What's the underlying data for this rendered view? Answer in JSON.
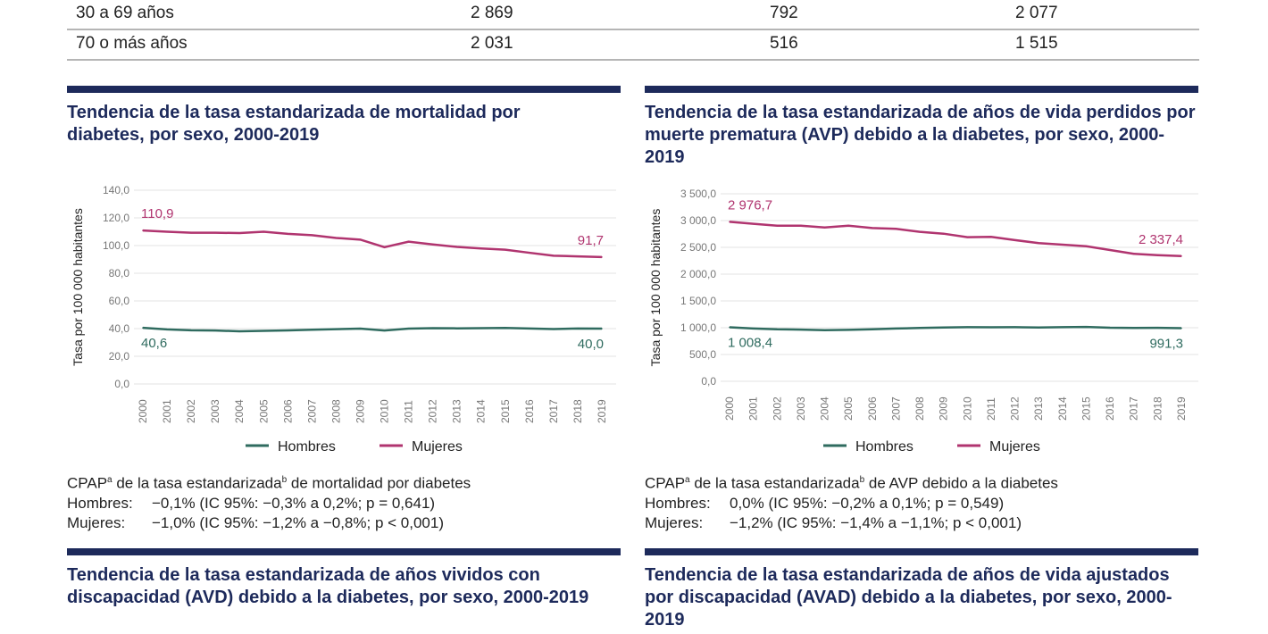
{
  "table": {
    "rows": [
      [
        "30 a 69 años",
        "2 869",
        "792",
        "2 077"
      ],
      [
        "70 o más años",
        "2 031",
        "516",
        "1 515"
      ]
    ]
  },
  "colors": {
    "navy": "#1d2a5b",
    "hombres": "#2f6b5f",
    "mujeres": "#b0346f"
  },
  "titles": {
    "mort": "Tendencia de la tasa estandarizada de mortalidad por diabetes, por sexo, 2000-2019",
    "avp": "Tendencia de la tasa estandarizada de años de vida perdidos por muerte prematura (AVP) debido a la diabetes, por sexo, 2000-2019",
    "avd": "Tendencia de la tasa estandarizada de años vividos con discapacidad (AVD) debido a la diabetes, por sexo, 2000-2019",
    "avad": "Tendencia de la tasa estandarizada de años de vida ajustados por discapacidad (AVAD) debido a la diabetes, por sexo, 2000-2019"
  },
  "notes": {
    "mort": {
      "head": "CPAP",
      "sup_a": "a",
      "mid": " de la tasa estandarizada",
      "sup_b": "b",
      "tail": " de mortalidad por diabetes",
      "h_label": "Hombres:",
      "h_text": "−0,1% (IC 95%: −0,3% a 0,2%; p = 0,641)",
      "m_label": "Mujeres:",
      "m_text": "−1,0% (IC 95%: −1,2% a −0,8%; p < 0,001)"
    },
    "avp": {
      "head": "CPAP",
      "sup_a": "a",
      "mid": " de la tasa estandarizada",
      "sup_b": "b",
      "tail": " de AVP debido a la diabetes",
      "h_label": "Hombres:",
      "h_text": "0,0% (IC 95%: −0,2% a 0,1%; p = 0,549)",
      "m_label": "Mujeres:",
      "m_text": "−1,2% (IC 95%: −1,4% a −1,1%; p < 0,001)"
    }
  },
  "chart_data": [
    {
      "type": "line",
      "ylabel": "Tasa por 100 000 habitantes",
      "ylim": [
        0,
        140
      ],
      "yticks": [
        "0,0",
        "20,0",
        "40,0",
        "60,0",
        "80,0",
        "100,0",
        "120,0",
        "140,0"
      ],
      "ystep": 20,
      "x": [
        "2000",
        "2001",
        "2002",
        "2003",
        "2004",
        "2005",
        "2006",
        "2007",
        "2008",
        "2009",
        "2010",
        "2011",
        "2012",
        "2013",
        "2014",
        "2015",
        "2016",
        "2017",
        "2018",
        "2019"
      ],
      "grid": true,
      "legend": "bottom",
      "series": [
        {
          "name": "Hombres",
          "values": [
            40.6,
            39.4,
            38.8,
            38.6,
            38.1,
            38.4,
            38.7,
            39.2,
            39.6,
            40.0,
            38.6,
            40.0,
            40.3,
            40.2,
            40.3,
            40.5,
            40.1,
            39.7,
            40.1,
            40.0
          ],
          "start_label": "40,6",
          "end_label": "40,0"
        },
        {
          "name": "Mujeres",
          "values": [
            110.9,
            110.0,
            109.3,
            109.3,
            109.0,
            110.0,
            108.5,
            107.5,
            105.5,
            104.3,
            98.8,
            102.8,
            100.8,
            99.0,
            97.9,
            97.0,
            94.8,
            92.7,
            92.2,
            91.7
          ],
          "start_label": "110,9",
          "end_label": "91,7"
        }
      ]
    },
    {
      "type": "line",
      "ylabel": "Tasa por 100 000 habitantes",
      "ylim": [
        0,
        3500
      ],
      "yticks": [
        "0,0",
        "500,0",
        "1 000,0",
        "1 500,0",
        "2 000,0",
        "2 500,0",
        "3 000,0",
        "3 500,0"
      ],
      "ystep": 500,
      "x": [
        "2000",
        "2001",
        "2002",
        "2003",
        "2004",
        "2005",
        "2006",
        "2007",
        "2008",
        "2009",
        "2010",
        "2011",
        "2012",
        "2013",
        "2014",
        "2015",
        "2016",
        "2017",
        "2018",
        "2019"
      ],
      "grid": true,
      "legend": "bottom",
      "series": [
        {
          "name": "Hombres",
          "values": [
            1008.4,
            985,
            970,
            965,
            955,
            960,
            970,
            985,
            995,
            1005,
            1010,
            1008,
            1010,
            1005,
            1010,
            1015,
            1000,
            995,
            998,
            991.3
          ],
          "start_label": "1 008,4",
          "end_label": "991,3"
        },
        {
          "name": "Mujeres",
          "values": [
            2976.7,
            2940,
            2905,
            2905,
            2870,
            2905,
            2860,
            2845,
            2790,
            2755,
            2690,
            2695,
            2635,
            2580,
            2550,
            2520,
            2450,
            2380,
            2355,
            2337.4
          ],
          "start_label": "2 976,7",
          "end_label": "2 337,4"
        }
      ]
    }
  ]
}
